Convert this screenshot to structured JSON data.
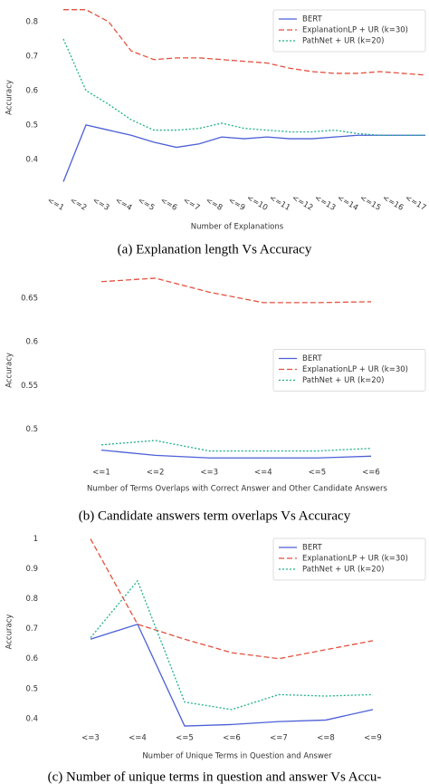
{
  "chart_data": [
    {
      "type": "line",
      "caption": "(a) Explanation length Vs Accuracy",
      "y_label": "Accuracy",
      "x_label": "Number of Explanations",
      "categories": [
        "<=1",
        "<=2",
        "<=3",
        "<=4",
        "<=5",
        "<=6",
        "<=7",
        "<=8",
        "<=9",
        "<=10",
        "<=11",
        "<=12",
        "<=13",
        "<=14",
        "<=15",
        "<=16",
        "<=17"
      ],
      "series": [
        {
          "name": "BERT",
          "color": "#4c5fd7",
          "line_style": "solid",
          "values": [
            0.335,
            0.5,
            0.485,
            0.47,
            0.45,
            0.435,
            0.445,
            0.465,
            0.46,
            0.465,
            0.46,
            0.46,
            0.465,
            0.47,
            0.47,
            0.47,
            0.47
          ]
        },
        {
          "name": "ExplanationLP + UR (k=30)",
          "color": "#e3513e",
          "line_style": "dashed",
          "values": [
            0.835,
            0.835,
            0.8,
            0.715,
            0.69,
            0.695,
            0.695,
            0.69,
            0.685,
            0.68,
            0.665,
            0.655,
            0.65,
            0.65,
            0.655,
            0.65,
            0.645
          ]
        },
        {
          "name": "PathNet + UR (k=20)",
          "color": "#20b08a",
          "line_style": "dotted",
          "values": [
            0.75,
            0.6,
            0.56,
            0.515,
            0.485,
            0.485,
            0.49,
            0.505,
            0.49,
            0.485,
            0.48,
            0.48,
            0.485,
            0.475,
            0.47,
            0.47,
            0.47
          ]
        }
      ],
      "ylim": [
        0.31,
        0.85
      ],
      "yticks": [
        0.4,
        0.5,
        0.6,
        0.7,
        0.8
      ],
      "grid": false,
      "legend_position": "upper right",
      "x_tick_rotation": 30
    },
    {
      "type": "line",
      "caption": "(b) Candidate answers term overlaps Vs Accuracy",
      "y_label": "Accuracy",
      "x_label": "Number of Terms Overlaps with Correct Answer and Other Candidate Answers",
      "categories": [
        "<=1",
        "<=2",
        "<=3",
        "<=4",
        "<=5",
        "<=6"
      ],
      "series": [
        {
          "name": "BERT",
          "color": "#4c5fd7",
          "line_style": "solid",
          "values": [
            0.476,
            0.47,
            0.467,
            0.467,
            0.467,
            0.469
          ]
        },
        {
          "name": "ExplanationLP + UR (k=30)",
          "color": "#e3513e",
          "line_style": "dashed",
          "values": [
            0.669,
            0.673,
            0.657,
            0.645,
            0.645,
            0.646
          ]
        },
        {
          "name": "PathNet + UR (k=20)",
          "color": "#20b08a",
          "line_style": "dotted",
          "values": [
            0.482,
            0.487,
            0.475,
            0.475,
            0.475,
            0.478
          ]
        }
      ],
      "ylim": [
        0.46,
        0.675
      ],
      "yticks": [
        0.5,
        0.55,
        0.6,
        0.65
      ],
      "grid": false,
      "legend_position": "center right",
      "x_tick_rotation": 0
    },
    {
      "type": "line",
      "caption": "(c) Number of unique terms in question and answer Vs Accu-",
      "y_label": "Accuracy",
      "x_label": "Number of Unique Terms in Question and Answer",
      "categories": [
        "<=3",
        "<=4",
        "<=5",
        "<=6",
        "<=7",
        "<=8",
        "<=9"
      ],
      "series": [
        {
          "name": "BERT",
          "color": "#4c5fd7",
          "line_style": "solid",
          "values": [
            0.665,
            0.715,
            0.375,
            0.38,
            0.39,
            0.395,
            0.43
          ]
        },
        {
          "name": "ExplanationLP + UR (k=30)",
          "color": "#e3513e",
          "line_style": "dashed",
          "values": [
            1.0,
            0.715,
            0.665,
            0.62,
            0.6,
            0.63,
            0.66
          ]
        },
        {
          "name": "PathNet + UR (k=20)",
          "color": "#20b08a",
          "line_style": "dotted",
          "values": [
            0.67,
            0.86,
            0.455,
            0.43,
            0.48,
            0.475,
            0.48
          ]
        }
      ],
      "ylim": [
        0.36,
        1.02
      ],
      "yticks": [
        0.4,
        0.5,
        0.6,
        0.7,
        0.8,
        0.9,
        1
      ],
      "grid": false,
      "legend_position": "upper right",
      "x_tick_rotation": 0
    }
  ]
}
